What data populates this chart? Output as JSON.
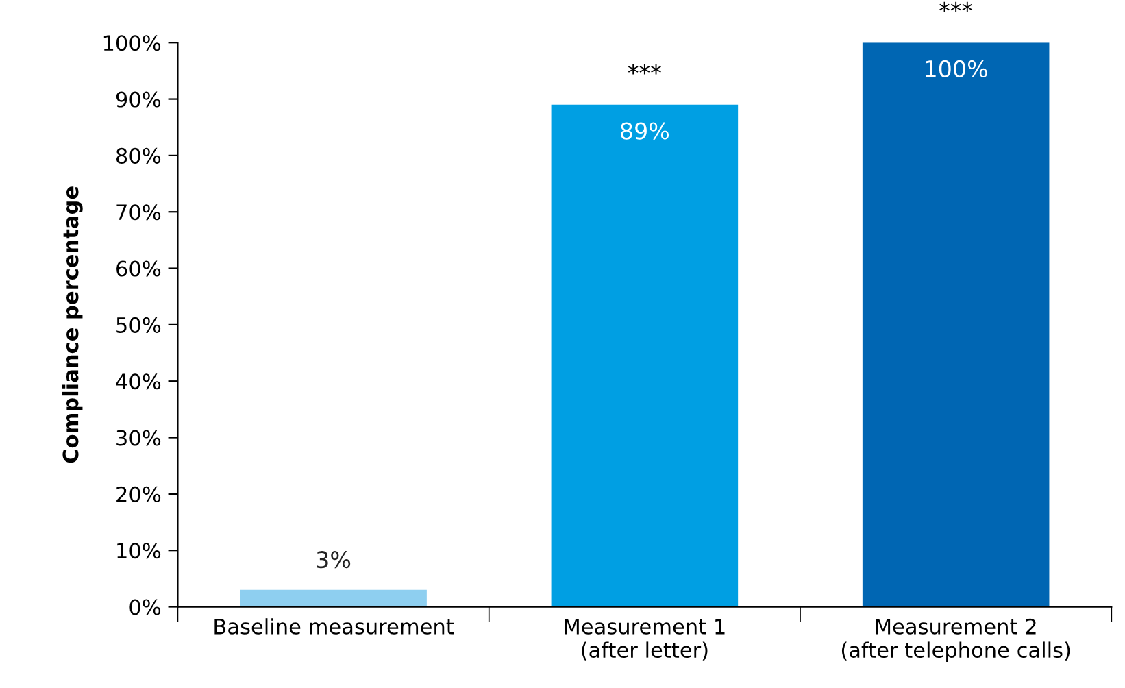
{
  "chart_data": {
    "type": "bar",
    "ylabel": "Compliance percentage",
    "categories": [
      "Baseline measurement",
      "Measurement 1\n(after letter)",
      "Measurement 2\n(after telephone calls)"
    ],
    "values": [
      3,
      89,
      100
    ],
    "colors": [
      "#8ecff0",
      "#009fe3",
      "#0066b3"
    ],
    "value_labels": [
      "3%",
      "89%",
      "100%"
    ],
    "ylim": [
      0,
      100
    ],
    "yticks": [
      {
        "value": 0,
        "label": "0%"
      },
      {
        "value": 10,
        "label": "10%"
      },
      {
        "value": 20,
        "label": "20%"
      },
      {
        "value": 30,
        "label": "30%"
      },
      {
        "value": 40,
        "label": "40%"
      },
      {
        "value": 50,
        "label": "50%"
      },
      {
        "value": 60,
        "label": "60%"
      },
      {
        "value": 70,
        "label": "70%"
      },
      {
        "value": 80,
        "label": "80%"
      },
      {
        "value": 90,
        "label": "90%"
      },
      {
        "value": 100,
        "label": "100%"
      }
    ],
    "annotations": [
      {
        "text": "***",
        "x": "Measurement 1\n(after letter)",
        "y": 89
      },
      {
        "text": "***",
        "x": "Measurement 2\n(after telephone calls)",
        "y": 100
      }
    ],
    "grid": false,
    "legend": false
  }
}
